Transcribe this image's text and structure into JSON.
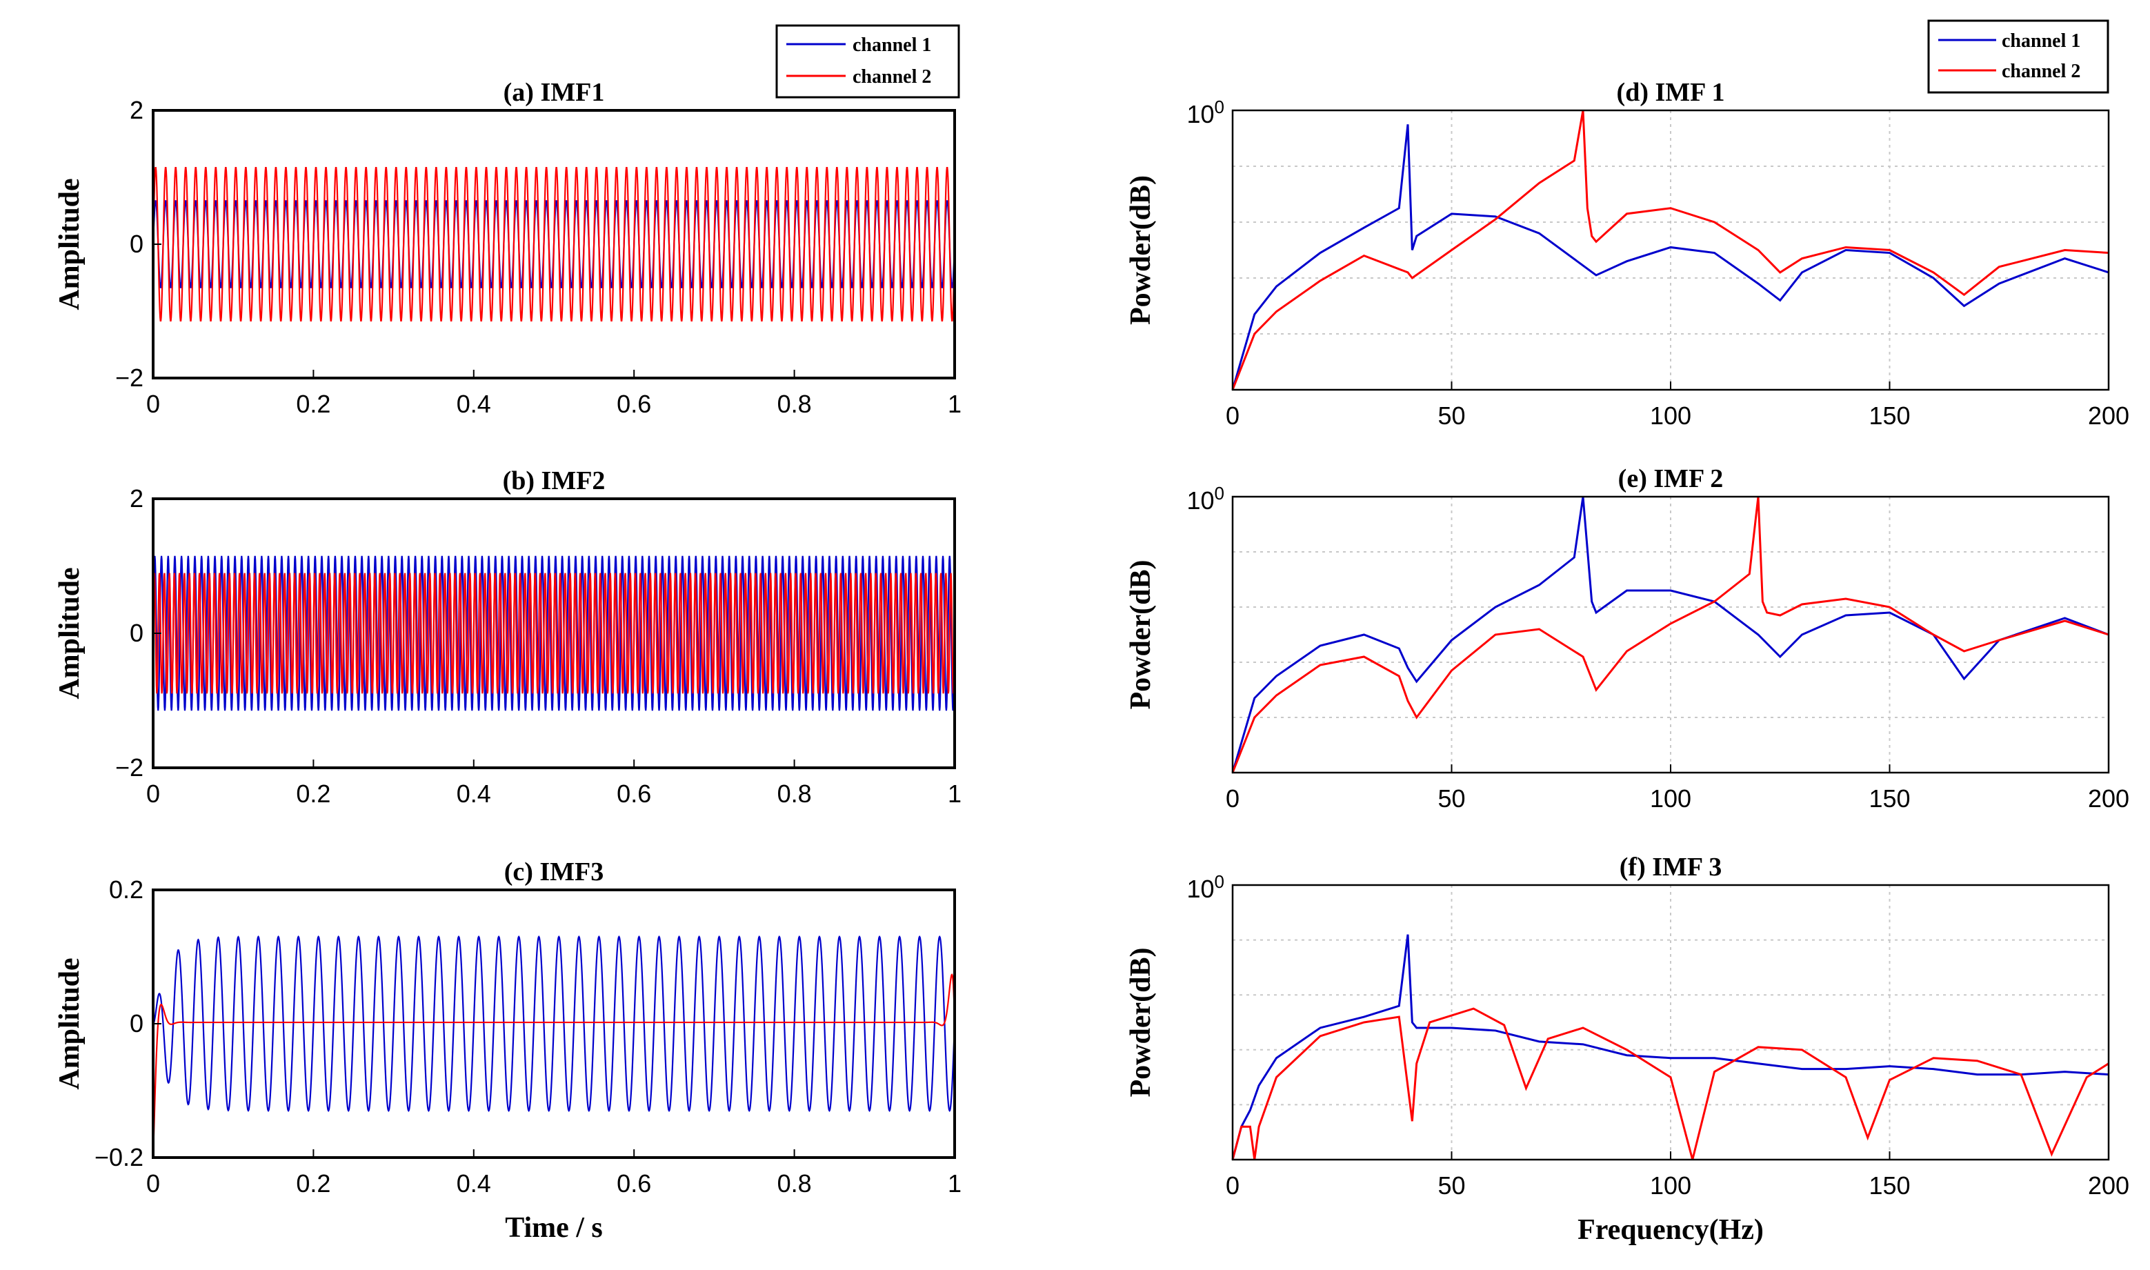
{
  "chart_data": [
    {
      "id": "a",
      "type": "line",
      "title": "(a) IMF1",
      "xlabel": "",
      "ylabel": "Amplitude",
      "xlim": [
        0,
        1
      ],
      "ylim": [
        -2,
        2
      ],
      "xticks": [
        0,
        0.2,
        0.4,
        0.6,
        0.8,
        1
      ],
      "xtick_labels": [
        "0",
        "0.2",
        "0.4",
        "0.6",
        "0.8",
        "1"
      ],
      "yticks": [
        -2,
        0,
        2
      ],
      "ytick_labels": [
        "−2",
        "0",
        "2"
      ],
      "grid": false,
      "series": [
        {
          "name": "channel 1",
          "color": "#0000cc",
          "signal": {
            "freq_hz": 80,
            "amplitude": 0.65
          }
        },
        {
          "name": "channel 2",
          "color": "#ff0000",
          "signal": {
            "freq_hz": 80,
            "amplitude": 1.15
          }
        }
      ]
    },
    {
      "id": "b",
      "type": "line",
      "title": "(b) IMF2",
      "xlabel": "",
      "ylabel": "Amplitude",
      "xlim": [
        0,
        1
      ],
      "ylim": [
        -2,
        2
      ],
      "xticks": [
        0,
        0.2,
        0.4,
        0.6,
        0.8,
        1
      ],
      "xtick_labels": [
        "0",
        "0.2",
        "0.4",
        "0.6",
        "0.8",
        "1"
      ],
      "yticks": [
        -2,
        0,
        2
      ],
      "ytick_labels": [
        "−2",
        "0",
        "2"
      ],
      "grid": false,
      "series": [
        {
          "name": "channel 1",
          "color": "#0000cc",
          "signal": {
            "freq_hz": 120,
            "amplitude": 1.15
          }
        },
        {
          "name": "channel 2",
          "color": "#ff0000",
          "signal": {
            "freq_hz": 160,
            "amplitude": 0.9
          }
        }
      ]
    },
    {
      "id": "c",
      "type": "line",
      "title": "(c) IMF3",
      "xlabel": "Time / s",
      "ylabel": "Amplitude",
      "xlim": [
        0,
        1
      ],
      "ylim": [
        -0.2,
        0.2
      ],
      "xticks": [
        0,
        0.2,
        0.4,
        0.6,
        0.8,
        1
      ],
      "xtick_labels": [
        "0",
        "0.2",
        "0.4",
        "0.6",
        "0.8",
        "1"
      ],
      "yticks": [
        -0.2,
        0,
        0.2
      ],
      "ytick_labels": [
        "−0.2",
        "0",
        "0.2"
      ],
      "grid": false,
      "series": [
        {
          "name": "channel 1",
          "color": "#0000cc",
          "signal": {
            "freq_hz": 40,
            "amplitude": 0.13
          }
        },
        {
          "name": "channel 2",
          "color": "#ff0000",
          "signal": {
            "freq_hz": 0,
            "amplitude": 0.0
          }
        }
      ]
    },
    {
      "id": "d",
      "type": "line",
      "title": "(d)  IMF 1",
      "xlabel": "",
      "ylabel": "Powder(dB)",
      "xlim": [
        0,
        200
      ],
      "ylim": [
        0,
        1
      ],
      "xticks": [
        0,
        50,
        100,
        150,
        200
      ],
      "xtick_labels": [
        "0",
        "50",
        "100",
        "150",
        "200"
      ],
      "ytick_top_label": "10",
      "ytick_top_exp": "0",
      "grid": true,
      "series": [
        {
          "name": "channel 1",
          "color": "#0000cc",
          "x": [
            0,
            5,
            10,
            20,
            30,
            38,
            40,
            41,
            42,
            50,
            60,
            70,
            83,
            90,
            100,
            110,
            120,
            125,
            130,
            140,
            150,
            160,
            167,
            175,
            190,
            200
          ],
          "y": [
            0,
            0.27,
            0.37,
            0.49,
            0.58,
            0.65,
            0.95,
            0.5,
            0.55,
            0.63,
            0.62,
            0.56,
            0.41,
            0.46,
            0.51,
            0.49,
            0.38,
            0.32,
            0.42,
            0.5,
            0.49,
            0.4,
            0.3,
            0.38,
            0.47,
            0.42
          ]
        },
        {
          "name": "channel 2",
          "color": "#ff0000",
          "x": [
            0,
            5,
            10,
            20,
            30,
            40,
            41,
            50,
            60,
            70,
            78,
            80,
            81,
            82,
            83,
            90,
            100,
            110,
            120,
            125,
            130,
            140,
            150,
            160,
            167,
            175,
            190,
            200
          ],
          "y": [
            0,
            0.2,
            0.28,
            0.39,
            0.48,
            0.42,
            0.4,
            0.5,
            0.61,
            0.74,
            0.82,
            1.0,
            0.65,
            0.55,
            0.53,
            0.63,
            0.65,
            0.6,
            0.5,
            0.42,
            0.47,
            0.51,
            0.5,
            0.42,
            0.34,
            0.44,
            0.5,
            0.49
          ]
        }
      ]
    },
    {
      "id": "e",
      "type": "line",
      "title": "(e)  IMF 2",
      "xlabel": "",
      "ylabel": "Powder(dB)",
      "xlim": [
        0,
        200
      ],
      "ylim": [
        0,
        1
      ],
      "xticks": [
        0,
        50,
        100,
        150,
        200
      ],
      "xtick_labels": [
        "0",
        "50",
        "100",
        "150",
        "200"
      ],
      "ytick_top_label": "10",
      "ytick_top_exp": "0",
      "grid": true,
      "series": [
        {
          "name": "channel 1",
          "color": "#0000cc",
          "x": [
            0,
            5,
            10,
            20,
            30,
            38,
            40,
            42,
            50,
            60,
            70,
            78,
            80,
            82,
            83,
            90,
            100,
            110,
            120,
            125,
            130,
            140,
            150,
            160,
            167,
            175,
            190,
            200
          ],
          "y": [
            0,
            0.27,
            0.35,
            0.46,
            0.5,
            0.45,
            0.38,
            0.33,
            0.48,
            0.6,
            0.68,
            0.78,
            1.0,
            0.62,
            0.58,
            0.66,
            0.66,
            0.62,
            0.5,
            0.42,
            0.5,
            0.57,
            0.58,
            0.5,
            0.34,
            0.48,
            0.56,
            0.5
          ]
        },
        {
          "name": "channel 2",
          "color": "#ff0000",
          "x": [
            0,
            5,
            10,
            20,
            30,
            38,
            40,
            42,
            50,
            60,
            70,
            80,
            83,
            90,
            100,
            110,
            118,
            120,
            121,
            122,
            125,
            130,
            140,
            150,
            160,
            167,
            175,
            190,
            200
          ],
          "y": [
            0,
            0.2,
            0.28,
            0.39,
            0.42,
            0.35,
            0.26,
            0.2,
            0.37,
            0.5,
            0.52,
            0.42,
            0.3,
            0.44,
            0.54,
            0.62,
            0.72,
            1.0,
            0.62,
            0.58,
            0.57,
            0.61,
            0.63,
            0.6,
            0.5,
            0.44,
            0.48,
            0.55,
            0.5
          ]
        }
      ]
    },
    {
      "id": "f",
      "type": "line",
      "title": "(f)  IMF 3",
      "xlabel": "Frequency(Hz)",
      "ylabel": "Powder(dB)",
      "xlim": [
        0,
        200
      ],
      "ylim": [
        0,
        1
      ],
      "xticks": [
        0,
        50,
        100,
        150,
        200
      ],
      "xtick_labels": [
        "0",
        "50",
        "100",
        "150",
        "200"
      ],
      "ytick_top_label": "10",
      "ytick_top_exp": "0",
      "grid": true,
      "series": [
        {
          "name": "channel 1",
          "color": "#0000cc",
          "x": [
            0,
            2,
            4,
            6,
            10,
            20,
            30,
            38,
            40,
            41,
            42,
            50,
            60,
            70,
            80,
            90,
            100,
            110,
            120,
            130,
            140,
            150,
            160,
            170,
            180,
            190,
            200
          ],
          "y": [
            0,
            0.12,
            0.18,
            0.27,
            0.37,
            0.48,
            0.52,
            0.56,
            0.82,
            0.5,
            0.48,
            0.48,
            0.47,
            0.43,
            0.42,
            0.38,
            0.37,
            0.37,
            0.35,
            0.33,
            0.33,
            0.34,
            0.33,
            0.31,
            0.31,
            0.32,
            0.31
          ]
        },
        {
          "name": "channel 2",
          "color": "#ff0000",
          "x": [
            0,
            2,
            4,
            5,
            6,
            10,
            20,
            30,
            38,
            41,
            42,
            45,
            55,
            62,
            67,
            72,
            80,
            90,
            100,
            105,
            110,
            120,
            130,
            140,
            145,
            150,
            160,
            170,
            180,
            187,
            195,
            200
          ],
          "y": [
            0,
            0.12,
            0.12,
            0.0,
            0.12,
            0.3,
            0.45,
            0.5,
            0.52,
            0.14,
            0.35,
            0.5,
            0.55,
            0.49,
            0.26,
            0.44,
            0.48,
            0.4,
            0.3,
            0.0,
            0.32,
            0.41,
            0.4,
            0.3,
            0.08,
            0.29,
            0.37,
            0.36,
            0.31,
            0.02,
            0.3,
            0.35
          ]
        }
      ]
    }
  ],
  "legend_left": {
    "entries": [
      "channel 1",
      "channel 2"
    ]
  },
  "legend_right": {
    "entries": [
      "channel 1",
      "channel 2"
    ]
  }
}
